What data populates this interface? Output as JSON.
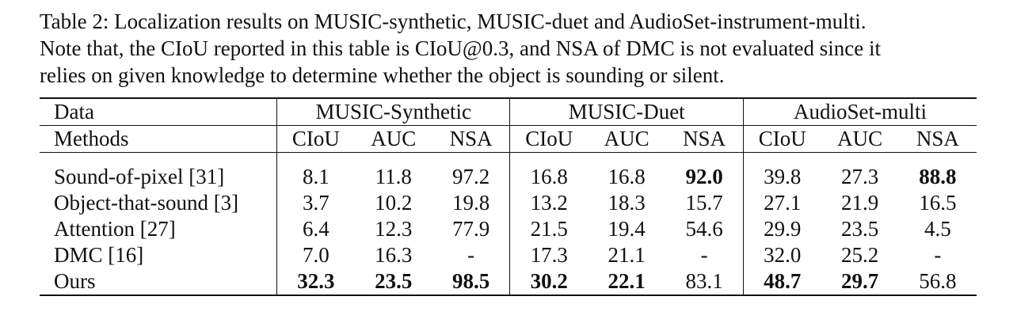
{
  "caption": {
    "line1": "Table 2: Localization results on MUSIC-synthetic, MUSIC-duet and AudioSet-instrument-multi.",
    "line2": "Note that, the CIoU reported in this table is CIoU@0.3, and NSA of DMC is not evaluated since it",
    "line3": "relies on given knowledge to determine whether the object is sounding or silent."
  },
  "table": {
    "data_label": "Data",
    "methods_label": "Methods",
    "groups": [
      "MUSIC-Synthetic",
      "MUSIC-Duet",
      "AudioSet-multi"
    ],
    "metrics": [
      "CIoU",
      "AUC",
      "NSA",
      "CIoU",
      "AUC",
      "NSA",
      "CIoU",
      "AUC",
      "NSA"
    ],
    "rows": [
      {
        "method": "Sound-of-pixel [31]",
        "values": [
          "8.1",
          "11.8",
          "97.2",
          "16.8",
          "16.8",
          "92.0",
          "39.8",
          "27.3",
          "88.8"
        ],
        "bold": [
          false,
          false,
          false,
          false,
          false,
          true,
          false,
          false,
          true
        ]
      },
      {
        "method": "Object-that-sound [3]",
        "values": [
          "3.7",
          "10.2",
          "19.8",
          "13.2",
          "18.3",
          "15.7",
          "27.1",
          "21.9",
          "16.5"
        ],
        "bold": [
          false,
          false,
          false,
          false,
          false,
          false,
          false,
          false,
          false
        ]
      },
      {
        "method": "Attention [27]",
        "values": [
          "6.4",
          "12.3",
          "77.9",
          "21.5",
          "19.4",
          "54.6",
          "29.9",
          "23.5",
          "4.5"
        ],
        "bold": [
          false,
          false,
          false,
          false,
          false,
          false,
          false,
          false,
          false
        ]
      },
      {
        "method": "DMC [16]",
        "values": [
          "7.0",
          "16.3",
          "-",
          "17.3",
          "21.1",
          "-",
          "32.0",
          "25.2",
          "-"
        ],
        "bold": [
          false,
          false,
          false,
          false,
          false,
          false,
          false,
          false,
          false
        ]
      },
      {
        "method": "Ours",
        "values": [
          "32.3",
          "23.5",
          "98.5",
          "30.2",
          "22.1",
          "83.1",
          "48.7",
          "29.7",
          "56.8"
        ],
        "bold": [
          true,
          true,
          true,
          true,
          true,
          false,
          true,
          true,
          false
        ]
      }
    ]
  }
}
